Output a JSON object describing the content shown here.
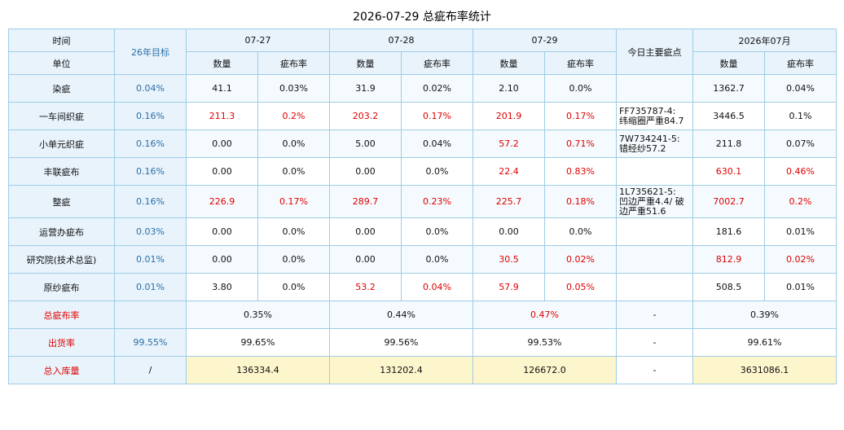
{
  "title": "2026-07-29 总疵布率统计",
  "header": {
    "time_label": "时间",
    "unit_label": "单位",
    "target_label": "26年目标",
    "days": [
      "07-27",
      "07-28",
      "07-29"
    ],
    "main_defect_label": "今日主要疵点",
    "month_label": "2026年07月",
    "qty_label": "数量",
    "rate_label": "疵布率"
  },
  "rows": [
    {
      "name": "染疵",
      "target": "0.04%",
      "d1q": "41.1",
      "d1r": "0.03%",
      "d2q": "31.9",
      "d2r": "0.02%",
      "d3q": "2.10",
      "d3r": "0.0%",
      "note": "",
      "mq": "1362.7",
      "mr": "0.04%"
    },
    {
      "name": "一车间织疵",
      "target": "0.16%",
      "d1q": "211.3",
      "d1r": "0.2%",
      "d2q": "203.2",
      "d2r": "0.17%",
      "d3q": "201.9",
      "d3r": "0.17%",
      "note": "FF735787-4:\n纬缩圈严重84.7",
      "mq": "3446.5",
      "mr": "0.1%"
    },
    {
      "name": "小单元织疵",
      "target": "0.16%",
      "d1q": "0.00",
      "d1r": "0.0%",
      "d2q": "5.00",
      "d2r": "0.04%",
      "d3q": "57.2",
      "d3r": "0.71%",
      "note": "7W734241-5:\n错经纱57.2",
      "mq": "211.8",
      "mr": "0.07%"
    },
    {
      "name": "丰联疵布",
      "target": "0.16%",
      "d1q": "0.00",
      "d1r": "0.0%",
      "d2q": "0.00",
      "d2r": "0.0%",
      "d3q": "22.4",
      "d3r": "0.83%",
      "note": "",
      "mq": "630.1",
      "mr": "0.46%"
    },
    {
      "name": "整疵",
      "target": "0.16%",
      "d1q": "226.9",
      "d1r": "0.17%",
      "d2q": "289.7",
      "d2r": "0.23%",
      "d3q": "225.7",
      "d3r": "0.18%",
      "note": "1L735621-5:\n凹边严重4.4/ 破\n边严重51.6",
      "mq": "7002.7",
      "mr": "0.2%"
    },
    {
      "name": "运营办疵布",
      "target": "0.03%",
      "d1q": "0.00",
      "d1r": "0.0%",
      "d2q": "0.00",
      "d2r": "0.0%",
      "d3q": "0.00",
      "d3r": "0.0%",
      "note": "",
      "mq": "181.6",
      "mr": "0.01%"
    },
    {
      "name": "研究院(技术总监)",
      "target": "0.01%",
      "d1q": "0.00",
      "d1r": "0.0%",
      "d2q": "0.00",
      "d2r": "0.0%",
      "d3q": "30.5",
      "d3r": "0.02%",
      "note": "",
      "mq": "812.9",
      "mr": "0.02%"
    },
    {
      "name": "原纱疵布",
      "target": "0.01%",
      "d1q": "3.80",
      "d1r": "0.0%",
      "d2q": "53.2",
      "d2r": "0.04%",
      "d3q": "57.9",
      "d3r": "0.05%",
      "note": "",
      "mq": "508.5",
      "mr": "0.01%"
    }
  ],
  "summary": {
    "total_rate": {
      "label": "总疵布率",
      "target": "",
      "d1": "0.35%",
      "d2": "0.44%",
      "d3": "0.47%",
      "note": "-",
      "month": "0.39%"
    },
    "shipping_rate": {
      "label": "出货率",
      "target": "99.55%",
      "d1": "99.65%",
      "d2": "99.56%",
      "d3": "99.53%",
      "note": "-",
      "month": "99.61%"
    },
    "total_stock": {
      "label": "总入库量",
      "target": "/",
      "d1": "136334.4",
      "d2": "131202.4",
      "d3": "126672.0",
      "note": "-",
      "month": "3631086.1"
    }
  },
  "colors": {
    "header_bg": "#e8f3fc",
    "border": "#9ecde6",
    "alert": "#e00000",
    "target_text": "#2c6ea3",
    "stock_bg": "#fdf5cc"
  }
}
